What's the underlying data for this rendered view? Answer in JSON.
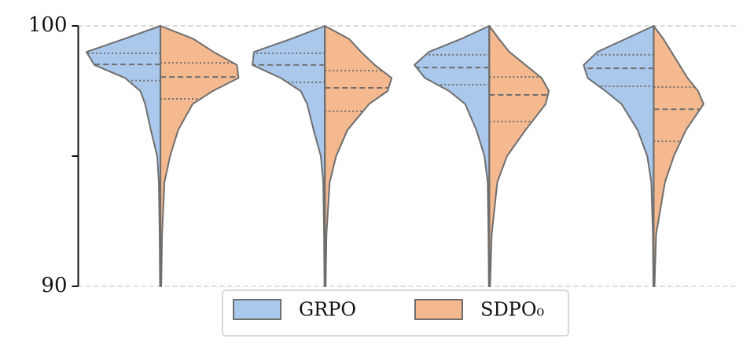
{
  "chart_data": {
    "type": "violin",
    "categories": [
      null,
      null,
      null,
      null
    ],
    "ylim": [
      90,
      100
    ],
    "yticks": [
      90,
      100
    ],
    "yticks_unlabeled": [
      95
    ],
    "grid": true,
    "density_y": [
      90,
      92,
      94,
      95,
      96,
      97,
      97.5,
      98,
      98.5,
      99,
      99.5,
      100
    ],
    "series": [
      {
        "name": "GRPO",
        "color": "#aac8ec",
        "quartiles": [
          [
            97.9,
            98.52,
            98.95
          ],
          [
            97.83,
            98.5,
            98.95
          ],
          [
            97.74,
            98.4,
            98.89
          ],
          [
            97.68,
            98.37,
            98.89
          ]
        ],
        "density": [
          [
            0.5,
            1,
            2,
            4,
            12,
            19,
            25,
            44,
            82,
            92,
            45,
            0
          ],
          [
            0.5,
            1,
            2,
            5,
            14,
            22,
            30,
            55,
            90,
            88,
            42,
            0
          ],
          [
            0.5,
            1,
            2,
            6,
            16,
            30,
            50,
            80,
            93,
            75,
            35,
            0
          ],
          [
            0.5,
            1,
            3,
            8,
            20,
            40,
            60,
            82,
            87,
            70,
            35,
            0
          ]
        ]
      },
      {
        "name": "SDPO₀",
        "color": "#f4b98f",
        "quartiles": [
          [
            97.2,
            98.04,
            98.58
          ],
          [
            96.72,
            97.62,
            98.28
          ],
          [
            96.33,
            97.35,
            98.04
          ],
          [
            95.57,
            96.8,
            97.65
          ]
        ],
        "density": [
          [
            1,
            2,
            5,
            12,
            22,
            40,
            65,
            97,
            95,
            66,
            41,
            0
          ],
          [
            1,
            2,
            6,
            14,
            28,
            55,
            78,
            83,
            62,
            45,
            30,
            0
          ],
          [
            1,
            3,
            10,
            22,
            45,
            70,
            74,
            65,
            45,
            25,
            12,
            0
          ],
          [
            1,
            3,
            14,
            25,
            40,
            62,
            55,
            42,
            32,
            22,
            12,
            0
          ]
        ]
      }
    ]
  }
}
